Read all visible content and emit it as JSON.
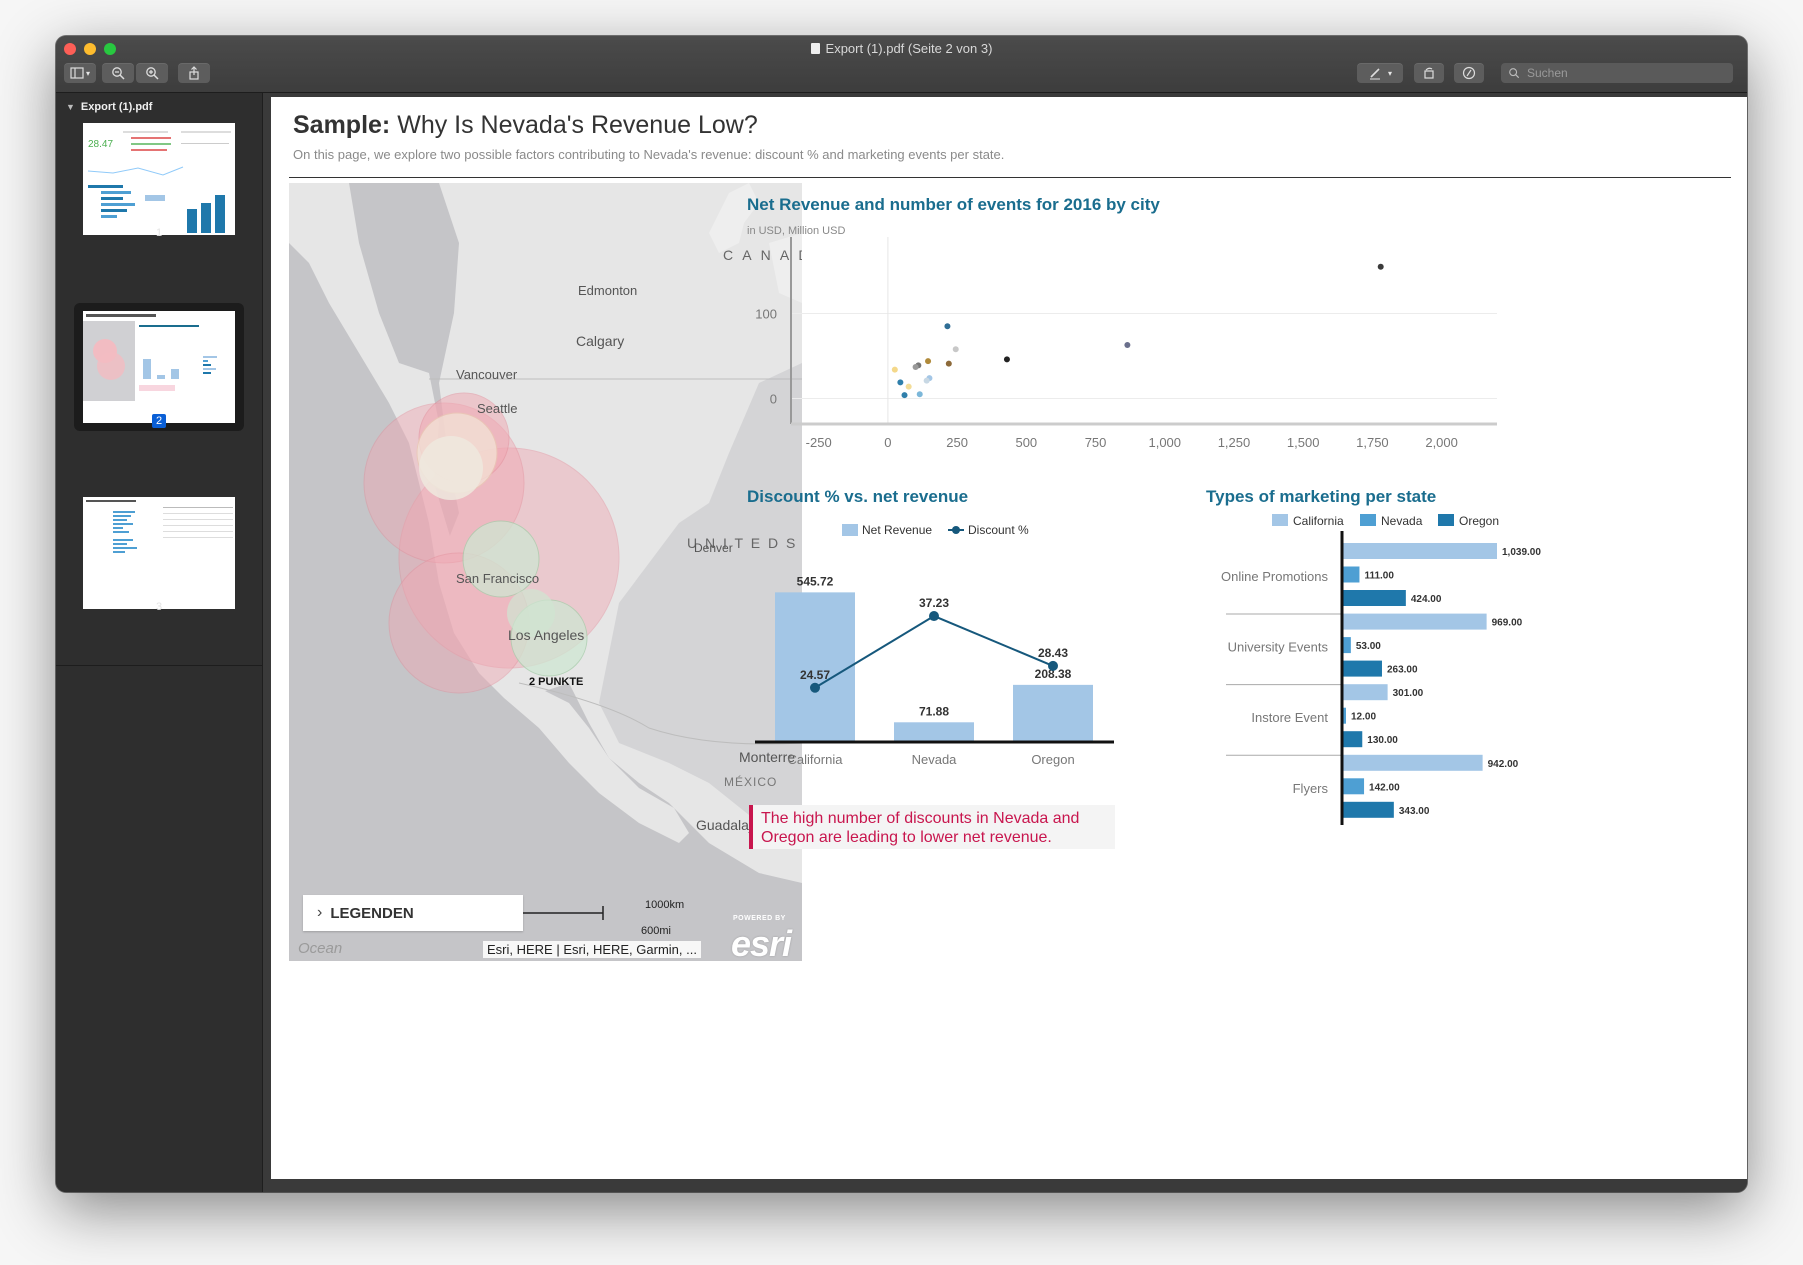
{
  "window": {
    "title": "Export (1).pdf (Seite 2 von 3)",
    "search_placeholder": "Suchen"
  },
  "sidebar": {
    "document_name": "Export (1).pdf",
    "pages": [
      {
        "label": "1",
        "selected": false
      },
      {
        "label": "2",
        "selected": true
      },
      {
        "label": "3",
        "selected": false
      }
    ],
    "thumb1_value": "28.47"
  },
  "page": {
    "title_bold": "Sample:",
    "title_rest": "Why Is Nevada's Revenue Low?",
    "subtitle": "On this page, we explore two possible factors contributing to Nevada's revenue: discount % and marketing events per state."
  },
  "map": {
    "labels": {
      "canada": "C A N A D",
      "edmonton": "Edmonton",
      "calgary": "Calgary",
      "vancouver": "Vancouver",
      "seattle": "Seattle",
      "united_states": "U N I T E D   S",
      "denver": "Denver",
      "san_francisco": "San Francisco",
      "los_angeles": "Los Angeles",
      "punkte": "2 PUNKTE",
      "monterrey": "Monterre",
      "mexico": "MÉXICO",
      "guadalajara": "Guadalajara",
      "d": "D",
      "ocean": "Ocean"
    },
    "legend_label": "LEGENDEN",
    "scale_km": "1000km",
    "scale_mi": "600mi",
    "attribution": "Esri, HERE | Esri, HERE, Garmin, ...",
    "powered_by": "POWERED BY",
    "logo": "esri"
  },
  "scatter": {
    "title": "Net Revenue and number of events for 2016 by city",
    "subtitle": "in USD, Million USD"
  },
  "discount": {
    "title": "Discount % vs. net revenue",
    "legend_revenue": "Net Revenue",
    "legend_discount": "Discount %"
  },
  "marketing": {
    "title": "Types of marketing per state",
    "legend": [
      "California",
      "Nevada",
      "Oregon"
    ]
  },
  "callout": "The high number of discounts in Nevada and Oregon are leading to lower net revenue.",
  "colors": {
    "title_teal": "#1a6d8e",
    "bar_light": "#a3c6e6",
    "bar_mid": "#4e9fd3",
    "bar_dark": "#1f78ab",
    "line": "#16587c",
    "callout": "#c8164e"
  },
  "chart_data": [
    {
      "type": "scatter",
      "title": "Net Revenue and number of events for 2016 by city",
      "subtitle": "in USD, Million USD",
      "xlim": [
        -350,
        2200
      ],
      "ylim": [
        -30,
        190
      ],
      "x_ticks": [
        "-250",
        "0",
        "250",
        "500",
        "750",
        "1,000",
        "1,250",
        "1,500",
        "1,750",
        "2,000"
      ],
      "x_tick_values": [
        -250,
        0,
        250,
        500,
        750,
        1000,
        1250,
        1500,
        1750,
        2000
      ],
      "y_ticks": [
        "0",
        "100"
      ],
      "y_tick_values": [
        0,
        100
      ],
      "points": [
        {
          "x": 1780,
          "y": 155,
          "color": "#3a3a3a"
        },
        {
          "x": 865,
          "y": 63,
          "color": "#6a6f8c"
        },
        {
          "x": 430,
          "y": 46,
          "color": "#222222"
        },
        {
          "x": 215,
          "y": 85,
          "color": "#2f6e95"
        },
        {
          "x": 245,
          "y": 58,
          "color": "#c8c8c8"
        },
        {
          "x": 220,
          "y": 41,
          "color": "#8d6a3a"
        },
        {
          "x": 145,
          "y": 44,
          "color": "#b08a3a"
        },
        {
          "x": 110,
          "y": 39,
          "color": "#777777"
        },
        {
          "x": 100,
          "y": 37,
          "color": "#999999"
        },
        {
          "x": 25,
          "y": 34,
          "color": "#f4d88a"
        },
        {
          "x": 150,
          "y": 24,
          "color": "#a3c6e6"
        },
        {
          "x": 140,
          "y": 21,
          "color": "#c8d8e4"
        },
        {
          "x": 45,
          "y": 19,
          "color": "#2f7fab"
        },
        {
          "x": 75,
          "y": 14,
          "color": "#f3dd98"
        },
        {
          "x": 60,
          "y": 4,
          "color": "#2f7fab"
        },
        {
          "x": 115,
          "y": 5,
          "color": "#7cb7d9"
        }
      ]
    },
    {
      "type": "bar",
      "title": "Discount % vs. net revenue",
      "categories": [
        "California",
        "Nevada",
        "Oregon"
      ],
      "series": [
        {
          "name": "Net Revenue",
          "kind": "bar",
          "values": [
            545.72,
            71.88,
            208.38
          ],
          "labels": [
            "545.72",
            "71.88",
            "208.38"
          ]
        },
        {
          "name": "Discount %",
          "kind": "line",
          "values": [
            24.57,
            37.23,
            28.43
          ],
          "labels": [
            "24.57",
            "37.23",
            "28.43"
          ]
        }
      ],
      "revenue_max": 620,
      "discount_range": [
        15,
        45
      ]
    },
    {
      "type": "bar",
      "orientation": "horizontal",
      "title": "Types of marketing per state",
      "categories": [
        "Online Promotions",
        "University Events",
        "Instore Event",
        "Flyers"
      ],
      "series": [
        {
          "name": "California",
          "values": [
            1039,
            969,
            301,
            942
          ],
          "labels": [
            "1,039.00",
            "969.00",
            "301.00",
            "942.00"
          ]
        },
        {
          "name": "Nevada",
          "values": [
            111,
            53,
            12,
            142
          ],
          "labels": [
            "111.00",
            "53.00",
            "12.00",
            "142.00"
          ]
        },
        {
          "name": "Oregon",
          "values": [
            424,
            263,
            130,
            343
          ],
          "labels": [
            "424.00",
            "263.00",
            "130.00",
            "343.00"
          ]
        }
      ],
      "xlim": [
        0,
        1100
      ]
    }
  ]
}
